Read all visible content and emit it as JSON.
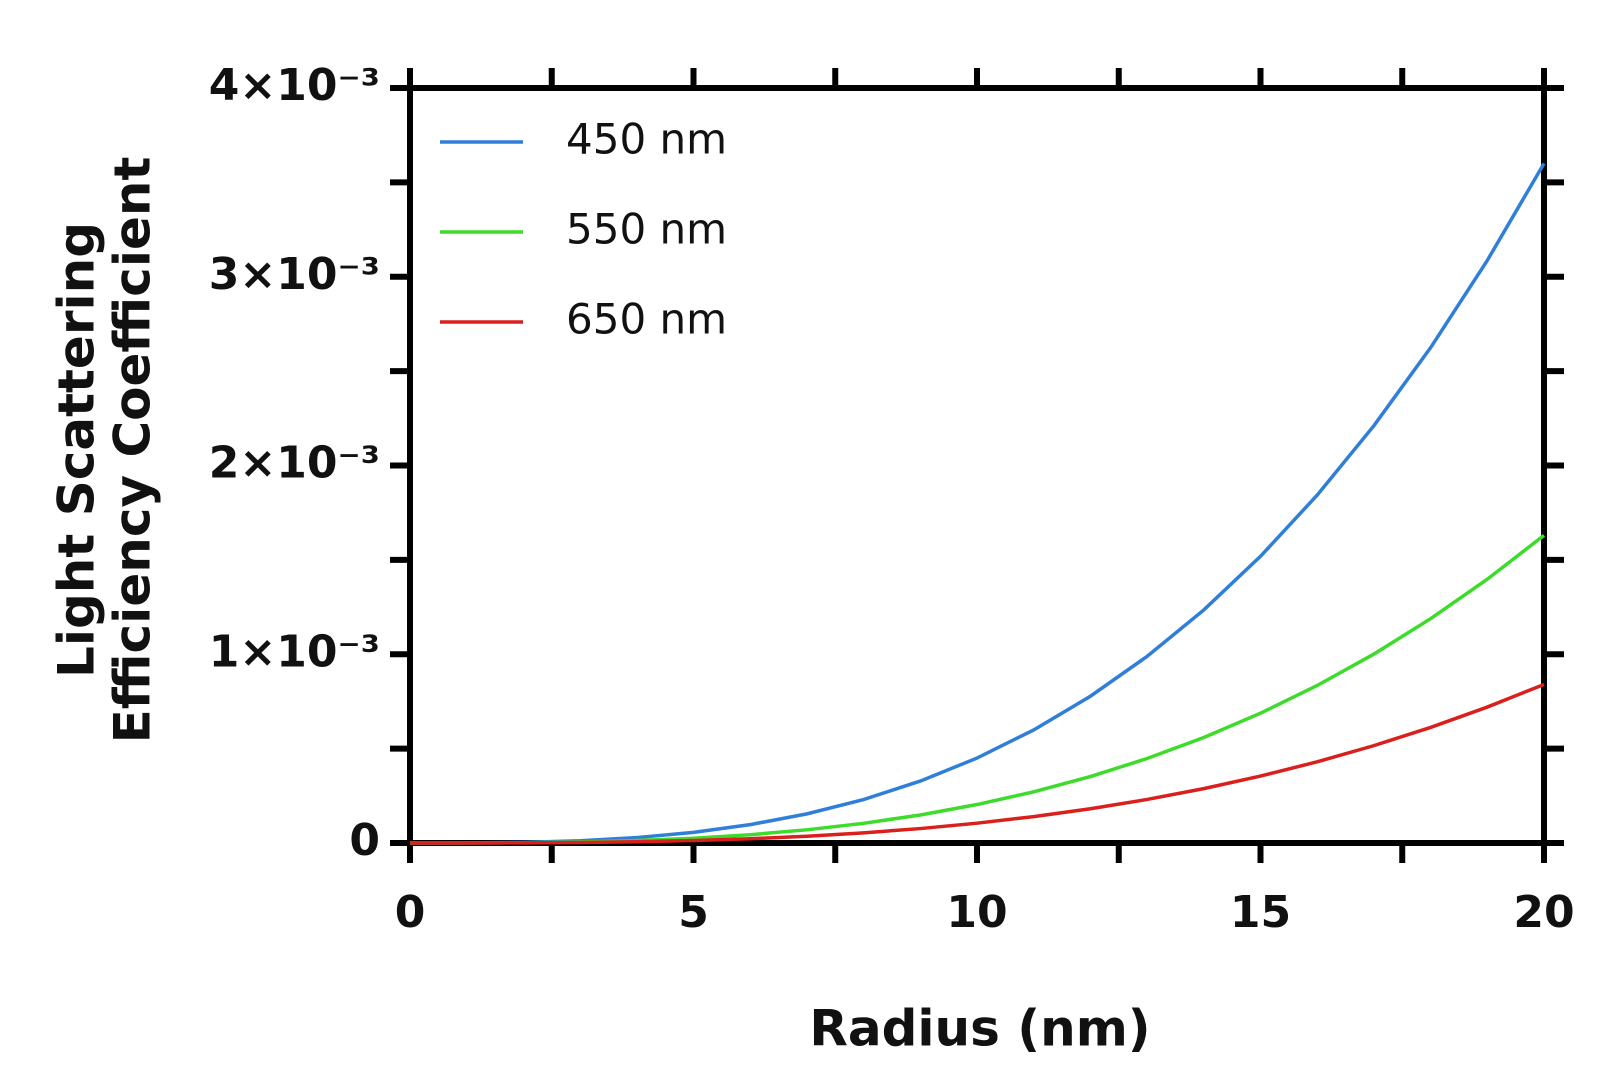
{
  "chart_data": {
    "type": "line",
    "xlabel": "Radius (nm)",
    "ylabel": [
      "Light Scattering",
      "Efficiency Coefficient"
    ],
    "x": [
      0,
      1,
      2,
      3,
      4,
      5,
      6,
      7,
      8,
      9,
      10,
      11,
      12,
      13,
      14,
      15,
      16,
      17,
      18,
      19,
      20
    ],
    "series": [
      {
        "name": "450 nm",
        "color": "#2f7fd8",
        "values": [
          0,
          4.5e-07,
          3.6e-06,
          1.215e-05,
          2.88e-05,
          5.625e-05,
          9.72e-05,
          0.00015435,
          0.0002304,
          0.00032805,
          0.00045,
          0.00059895,
          0.0007776,
          0.00098865,
          0.0012348,
          0.0015188,
          0.0018432,
          0.0022109,
          0.0026244,
          0.0030866,
          0.0036
        ]
      },
      {
        "name": "550 nm",
        "color": "#3ddc2a",
        "values": [
          0,
          2e-07,
          1.6e-06,
          5.5e-06,
          1.3e-05,
          2.55e-05,
          4.4e-05,
          6.99e-05,
          0.0001043,
          0.0001485,
          0.0002038,
          0.0002712,
          0.0003521,
          0.0004476,
          0.0005591,
          0.0006877,
          0.0008346,
          0.001001,
          0.0011883,
          0.0013975,
          0.00163
        ]
      },
      {
        "name": "650 nm",
        "color": "#d9201c",
        "values": [
          0,
          1e-07,
          8.4e-07,
          2.8e-06,
          6.7e-06,
          1.31e-05,
          2.27e-05,
          3.6e-05,
          5.38e-05,
          7.65e-05,
          0.000105,
          0.0001398,
          0.0001814,
          0.0002307,
          0.0002881,
          0.0003544,
          0.0004301,
          0.0005159,
          0.0006124,
          0.0007202,
          0.00084
        ]
      }
    ],
    "xlim": [
      0,
      20
    ],
    "xticks": [
      0,
      5,
      10,
      15,
      20
    ],
    "xminorticks": [
      2.5,
      7.5,
      12.5,
      17.5
    ],
    "ylim": [
      0,
      0.004
    ],
    "yticks": [
      0,
      {
        "value": 0.001,
        "label": "1×10⁻³"
      },
      {
        "value": 0.002,
        "label": "2×10⁻³"
      },
      {
        "value": 0.003,
        "label": "3×10⁻³"
      },
      {
        "value": 0.004,
        "label": "4×10⁻³"
      }
    ],
    "yminorticks": [
      0.0005,
      0.0015,
      0.0025,
      0.0035
    ],
    "legend": "upper-left",
    "grid": false
  }
}
